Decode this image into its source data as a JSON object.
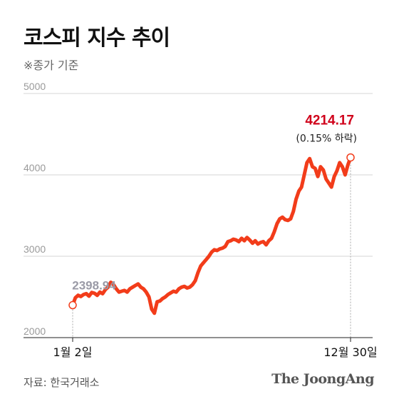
{
  "chart_data": {
    "type": "line",
    "title": "코스피 지수 추이",
    "subtitle": "※종가 기준",
    "yticks": [
      2000,
      3000,
      4000,
      5000
    ],
    "ylim": [
      2000,
      5000
    ],
    "x_tick_labels": [
      "1월 2일",
      "12월 30일"
    ],
    "start_label": "2398.94",
    "end_label": "4214.17",
    "end_note": "(0.15% 하락)",
    "grid": true,
    "series": [
      {
        "values": [
          2398.94,
          2490,
          2520,
          2505,
          2530,
          2540,
          2510,
          2555,
          2545,
          2520,
          2560,
          2540,
          2590,
          2620,
          2680,
          2650,
          2600,
          2560,
          2570,
          2580,
          2560,
          2600,
          2620,
          2640,
          2660,
          2620,
          2600,
          2560,
          2500,
          2350,
          2300,
          2440,
          2450,
          2480,
          2500,
          2530,
          2550,
          2570,
          2560,
          2600,
          2620,
          2630,
          2610,
          2620,
          2650,
          2700,
          2800,
          2880,
          2920,
          2960,
          3000,
          3050,
          3080,
          3070,
          3090,
          3100,
          3120,
          3180,
          3190,
          3210,
          3200,
          3180,
          3220,
          3190,
          3230,
          3200,
          3160,
          3190,
          3150,
          3170,
          3180,
          3140,
          3190,
          3220,
          3300,
          3400,
          3460,
          3480,
          3450,
          3440,
          3460,
          3550,
          3700,
          3800,
          3850,
          4000,
          4150,
          4200,
          4100,
          4080,
          3980,
          4100,
          4060,
          3950,
          3900,
          3850,
          3980,
          4050,
          4150,
          4100,
          4000,
          4120,
          4214.17
        ]
      }
    ],
    "colors": {
      "line": "#f23c1a",
      "end_label": "#d0021b",
      "start_label": "#9a9aa6",
      "grid": "#d4d4d4"
    }
  },
  "source": "자료: 한국거래소",
  "brand": "The JoongAng"
}
